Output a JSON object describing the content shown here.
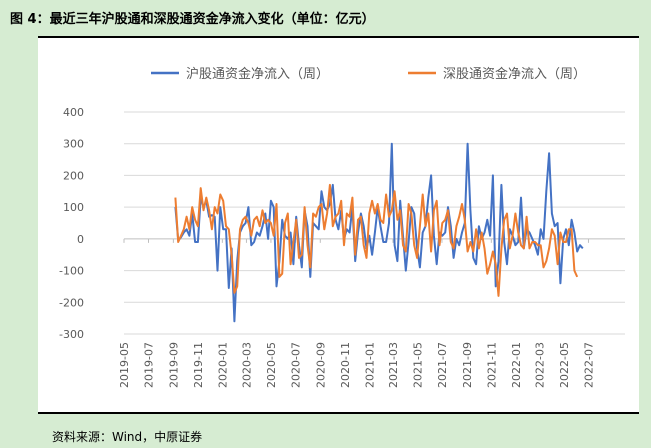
{
  "title": "图 4：最近三年沪股通和深股通资金净流入变化（单位：亿元）",
  "source": "资料来源：Wind，中原证券",
  "colors": {
    "sh": "#4472c4",
    "sz": "#ed7d31",
    "grid": "#d9d9d9",
    "axis": "#bfbfbf",
    "tick": "#595959"
  },
  "chart_data": {
    "type": "line",
    "title": "",
    "xlabel": "",
    "ylabel": "",
    "ylim": [
      -300,
      400
    ],
    "yticks": [
      -300,
      -200,
      -100,
      0,
      100,
      200,
      300,
      400
    ],
    "x_ticks": [
      "2019-05",
      "2019-07",
      "2019-09",
      "2019-11",
      "2020-01",
      "2020-03",
      "2020-05",
      "2020-07",
      "2020-09",
      "2020-11",
      "2021-01",
      "2021-03",
      "2021-05",
      "2021-07",
      "2021-09",
      "2021-11",
      "2022-01",
      "2022-03",
      "2022-05",
      "2022-07"
    ],
    "x_range": [
      "2019-05-01",
      "2022-09-30"
    ],
    "legend": "top",
    "grid": true,
    "series": [
      {
        "name": "沪股通资金净流入（周）",
        "start_date": "2019-09-06",
        "values": [
          100,
          -5,
          5,
          20,
          30,
          10,
          80,
          -10,
          -10,
          130,
          100,
          120,
          70,
          75,
          70,
          -100,
          100,
          30,
          30,
          -155,
          -30,
          -260,
          -70,
          20,
          40,
          50,
          100,
          -20,
          -10,
          20,
          10,
          40,
          80,
          0,
          120,
          100,
          -150,
          -70,
          60,
          10,
          0,
          20,
          -80,
          70,
          -20,
          -90,
          90,
          40,
          -120,
          50,
          40,
          30,
          150,
          100,
          90,
          110,
          170,
          60,
          30,
          90,
          0,
          30,
          20,
          100,
          -70,
          20,
          80,
          40,
          -30,
          10,
          -50,
          20,
          100,
          40,
          -10,
          -10,
          50,
          300,
          -20,
          -70,
          120,
          10,
          -100,
          -10,
          100,
          80,
          -30,
          -90,
          20,
          40,
          130,
          200,
          10,
          -80,
          20,
          10,
          20,
          100,
          40,
          -60,
          0,
          -20,
          20,
          50,
          300,
          90,
          -60,
          -80,
          40,
          0,
          20,
          60,
          10,
          200,
          -150,
          -70,
          170,
          -10,
          -80,
          30,
          10,
          -20,
          -10,
          130,
          -30,
          30,
          20,
          0,
          -20,
          -50,
          30,
          0,
          150,
          270,
          80,
          40,
          50,
          -140,
          0,
          30,
          -20,
          60,
          20,
          -40,
          -20,
          -30
        ]
      },
      {
        "name": "深股通资金净流入（周）",
        "start_date": "2019-09-06",
        "values": [
          130,
          -10,
          10,
          30,
          70,
          30,
          100,
          60,
          40,
          160,
          90,
          130,
          90,
          30,
          100,
          80,
          140,
          120,
          40,
          30,
          -50,
          -170,
          -150,
          30,
          60,
          70,
          50,
          10,
          60,
          70,
          40,
          90,
          50,
          60,
          50,
          10,
          110,
          -120,
          -110,
          50,
          80,
          -80,
          -10,
          60,
          -60,
          -50,
          100,
          -20,
          -90,
          80,
          70,
          100,
          110,
          30,
          80,
          170,
          40,
          70,
          80,
          120,
          -20,
          80,
          70,
          130,
          -50,
          60,
          70,
          -20,
          -60,
          80,
          120,
          80,
          110,
          60,
          50,
          140,
          70,
          90,
          150,
          60,
          90,
          -20,
          -40,
          110,
          80,
          -20,
          -60,
          40,
          140,
          40,
          80,
          -40,
          90,
          120,
          -20,
          50,
          60,
          90,
          -10,
          -30,
          40,
          70,
          110,
          60,
          -40,
          -10,
          -40,
          30,
          -30,
          20,
          -30,
          -110,
          -80,
          -40,
          -80,
          -180,
          -30,
          60,
          80,
          -30,
          10,
          80,
          20,
          -20,
          -30,
          70,
          -30,
          -10,
          -10,
          -20,
          -20,
          -90,
          -70,
          -30,
          30,
          10,
          -80,
          20,
          -10,
          -10,
          30,
          30,
          -100,
          -120
        ]
      }
    ]
  }
}
